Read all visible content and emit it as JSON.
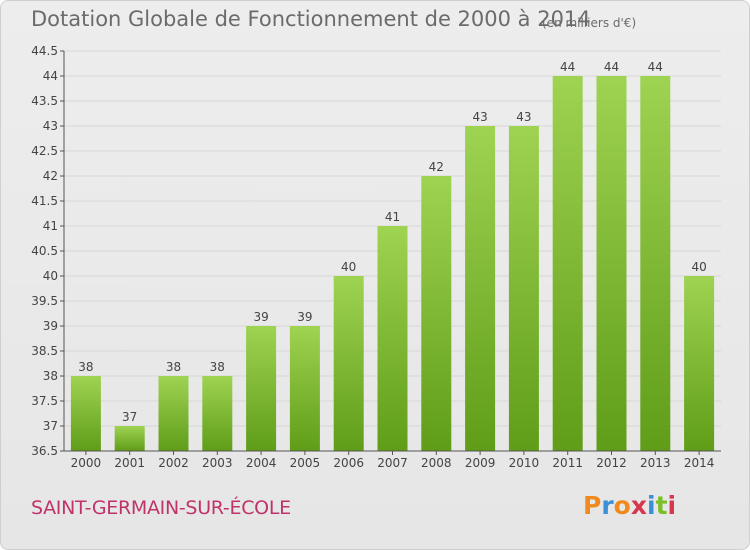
{
  "header": {
    "title": "Dotation Globale de Fonctionnement de 2000 à 2014",
    "unit": "(en milliers d'€)"
  },
  "footer": {
    "commune": "SAINT-GERMAIN-SUR-ÉCOLE",
    "logo_letters": [
      "P",
      "r",
      "o",
      "x",
      "i",
      "t",
      "i"
    ],
    "logo_colors": [
      "#f08a1d",
      "#3a8fd6",
      "#f08a1d",
      "#d8364f",
      "#3a8fd6",
      "#7cbf2a",
      "#d8364f"
    ]
  },
  "colors": {
    "bar_top": "#9fd352",
    "bar_bottom": "#5f9d18",
    "grid": "#d7d7d7",
    "axis": "#555555",
    "text": "#444444"
  },
  "chart_data": {
    "type": "bar",
    "title": "Dotation Globale de Fonctionnement de 2000 à 2014",
    "subtitle": "(en milliers d'€)",
    "categories": [
      "2000",
      "2001",
      "2002",
      "2003",
      "2004",
      "2005",
      "2006",
      "2007",
      "2008",
      "2009",
      "2010",
      "2011",
      "2012",
      "2013",
      "2014"
    ],
    "values": [
      38,
      37,
      38,
      38,
      39,
      39,
      40,
      41,
      42,
      43,
      43,
      44,
      44,
      44,
      40
    ],
    "value_labels": [
      "38",
      "37",
      "38",
      "38",
      "39",
      "39",
      "40",
      "41",
      "42",
      "43",
      "43",
      "44",
      "44",
      "44",
      "40"
    ],
    "ylim": [
      36.5,
      44.5
    ],
    "yticks": [
      36.5,
      37,
      37.5,
      38,
      38.5,
      39,
      39.5,
      40,
      40.5,
      41,
      41.5,
      42,
      42.5,
      43,
      43.5,
      44,
      44.5
    ],
    "ytick_labels": [
      "36.5",
      "37",
      "37.5",
      "38",
      "38.5",
      "39",
      "39.5",
      "40",
      "40.5",
      "41",
      "41.5",
      "42",
      "42.5",
      "43",
      "43.5",
      "44",
      "44.5"
    ],
    "grid": true,
    "legend": "none"
  }
}
